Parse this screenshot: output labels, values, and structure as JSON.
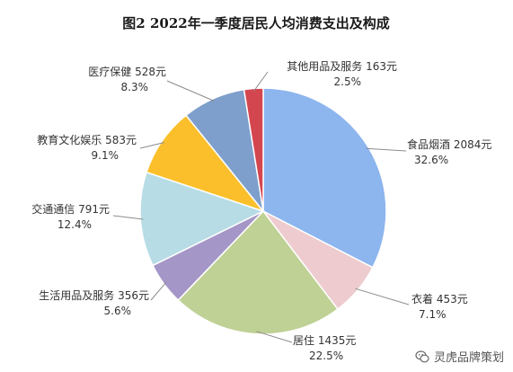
{
  "chart_data": {
    "type": "pie",
    "title": "图2    2022年一季度居民人均消费支出及构成",
    "start_angle_deg": 0,
    "direction": "clockwise",
    "slices": [
      {
        "name": "食品烟酒",
        "amount": "2084元",
        "value": 32.6,
        "color": "#8db5ee",
        "label": "食品烟酒 2084元",
        "pct": "32.6%"
      },
      {
        "name": "衣着",
        "amount": "453元",
        "value": 7.1,
        "color": "#edcbce",
        "label": "衣着 453元",
        "pct": "7.1%"
      },
      {
        "name": "居住",
        "amount": "1435元",
        "value": 22.5,
        "color": "#bfd195",
        "label": "居住 1435元",
        "pct": "22.5%"
      },
      {
        "name": "生活用品及服务",
        "amount": "356元",
        "value": 5.6,
        "color": "#a496c6",
        "label": "生活用品及服务 356元",
        "pct": "5.6%"
      },
      {
        "name": "交通通信",
        "amount": "791元",
        "value": 12.4,
        "color": "#b8dce5",
        "label": "交通通信 791元",
        "pct": "12.4%"
      },
      {
        "name": "教育文化娱乐",
        "amount": "583元",
        "value": 9.1,
        "color": "#fbbf2c",
        "label": "教育文化娱乐 583元",
        "pct": "9.1%"
      },
      {
        "name": "医疗保健",
        "amount": "528元",
        "value": 8.3,
        "color": "#7e9fcb",
        "label": "医疗保健 528元",
        "pct": "8.3%"
      },
      {
        "name": "其他用品及服务",
        "amount": "163元",
        "value": 2.5,
        "color": "#d4464f",
        "label": "其他用品及服务 163元",
        "pct": "2.5%"
      }
    ]
  },
  "watermark": {
    "text": "灵虎品牌策划",
    "icon": "wechat-icon"
  }
}
